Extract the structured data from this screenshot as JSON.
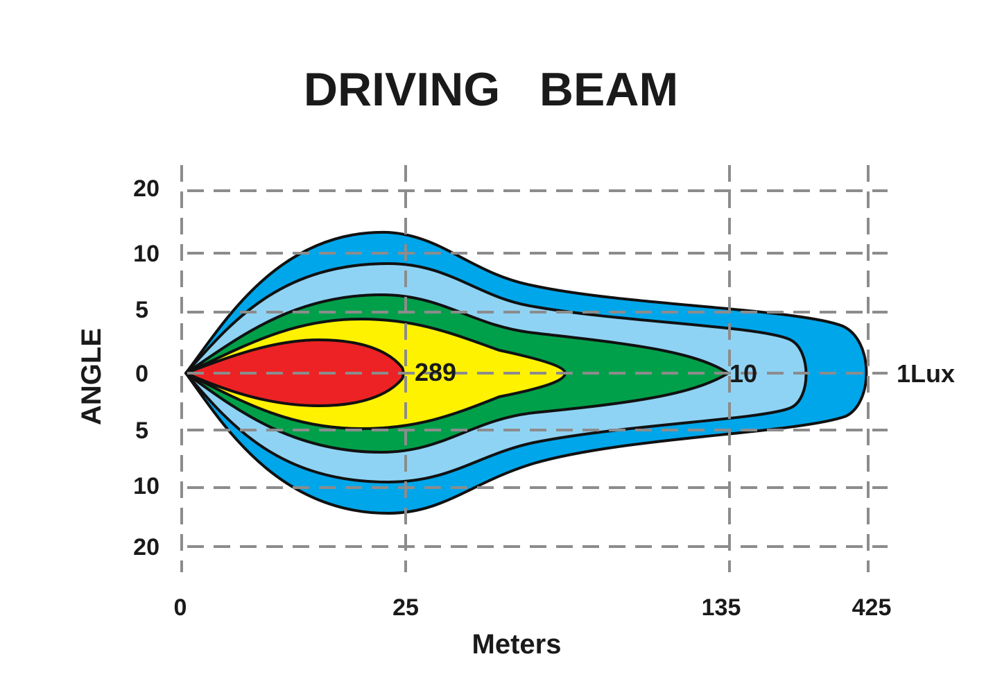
{
  "colors": {
    "zone_1_lux": "#00a6ea",
    "zone_3_lux": "#8fd3f4",
    "zone_10_lux": "#00a04a",
    "zone_100_lux": "#fff200",
    "zone_289_lux": "#ed2224",
    "grid": "#8c8c8c",
    "outline": "#111111",
    "text": "#1a1a1a"
  },
  "chart_data": {
    "type": "beam-pattern",
    "title": "DRIVING   BEAM",
    "xlabel": "Meters",
    "ylabel": "ANGLE",
    "x_ticks": [
      "0",
      "25",
      "135",
      "425"
    ],
    "y_ticks_upper": [
      "20",
      "10",
      "5"
    ],
    "y_tick_center": "0",
    "y_ticks_lower": [
      "5",
      "10",
      "20"
    ],
    "grid": true,
    "zones": [
      {
        "lux_label": "1Lux",
        "color_key": "zone_1_lux",
        "reach_tick": "425"
      },
      {
        "lux_label": "",
        "color_key": "zone_3_lux",
        "reach_tick": ""
      },
      {
        "lux_label": "10",
        "color_key": "zone_10_lux",
        "reach_tick": "135"
      },
      {
        "lux_label": "",
        "color_key": "zone_100_lux",
        "reach_tick": ""
      },
      {
        "lux_label": "289",
        "color_key": "zone_289_lux",
        "reach_tick": "25"
      }
    ]
  }
}
